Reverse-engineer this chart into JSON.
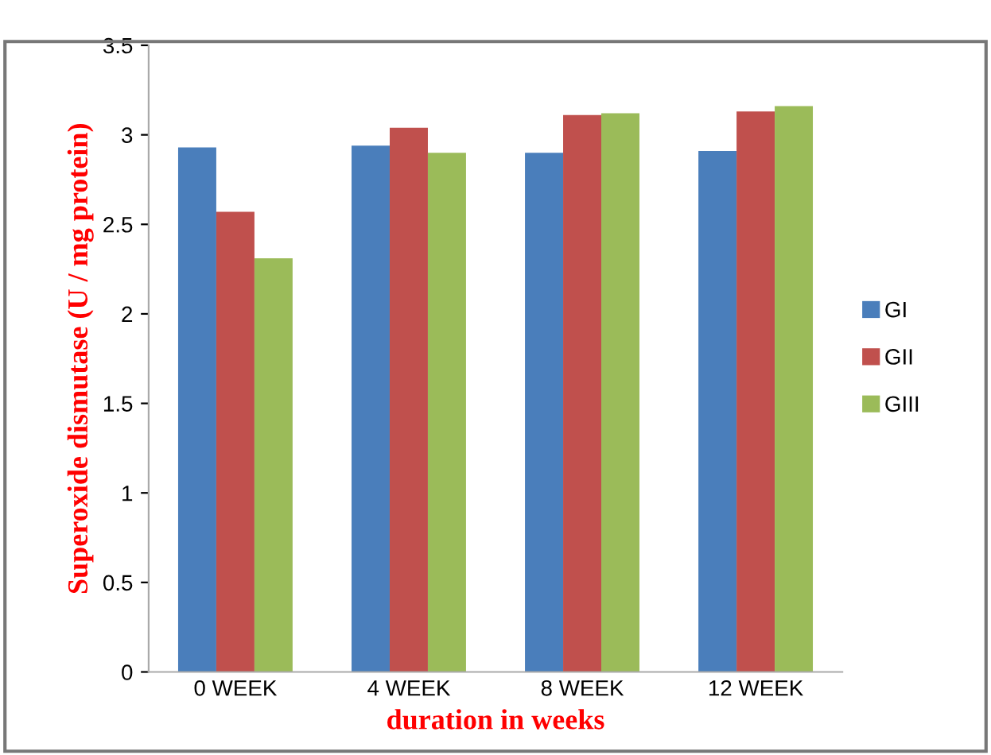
{
  "chart_data": {
    "type": "bar",
    "xlabel": "duration in weeks",
    "ylabel": "Superoxide dismutase (U / mg protein)",
    "categories": [
      "0 WEEK",
      "4 WEEK",
      "8 WEEK",
      "12 WEEK"
    ],
    "series": [
      {
        "name": "GI",
        "color": "#4a7ebb",
        "values": [
          2.93,
          2.94,
          2.9,
          2.91
        ]
      },
      {
        "name": "GII",
        "color": "#c0504d",
        "values": [
          2.57,
          3.04,
          3.11,
          3.13
        ]
      },
      {
        "name": "GIII",
        "color": "#9bbb59",
        "values": [
          2.31,
          2.9,
          3.12,
          3.16
        ]
      }
    ],
    "ylim": [
      0,
      3.5
    ],
    "yticks": [
      0,
      0.5,
      1,
      1.5,
      2,
      2.5,
      3,
      3.5
    ],
    "grid": false,
    "legend": "right"
  }
}
